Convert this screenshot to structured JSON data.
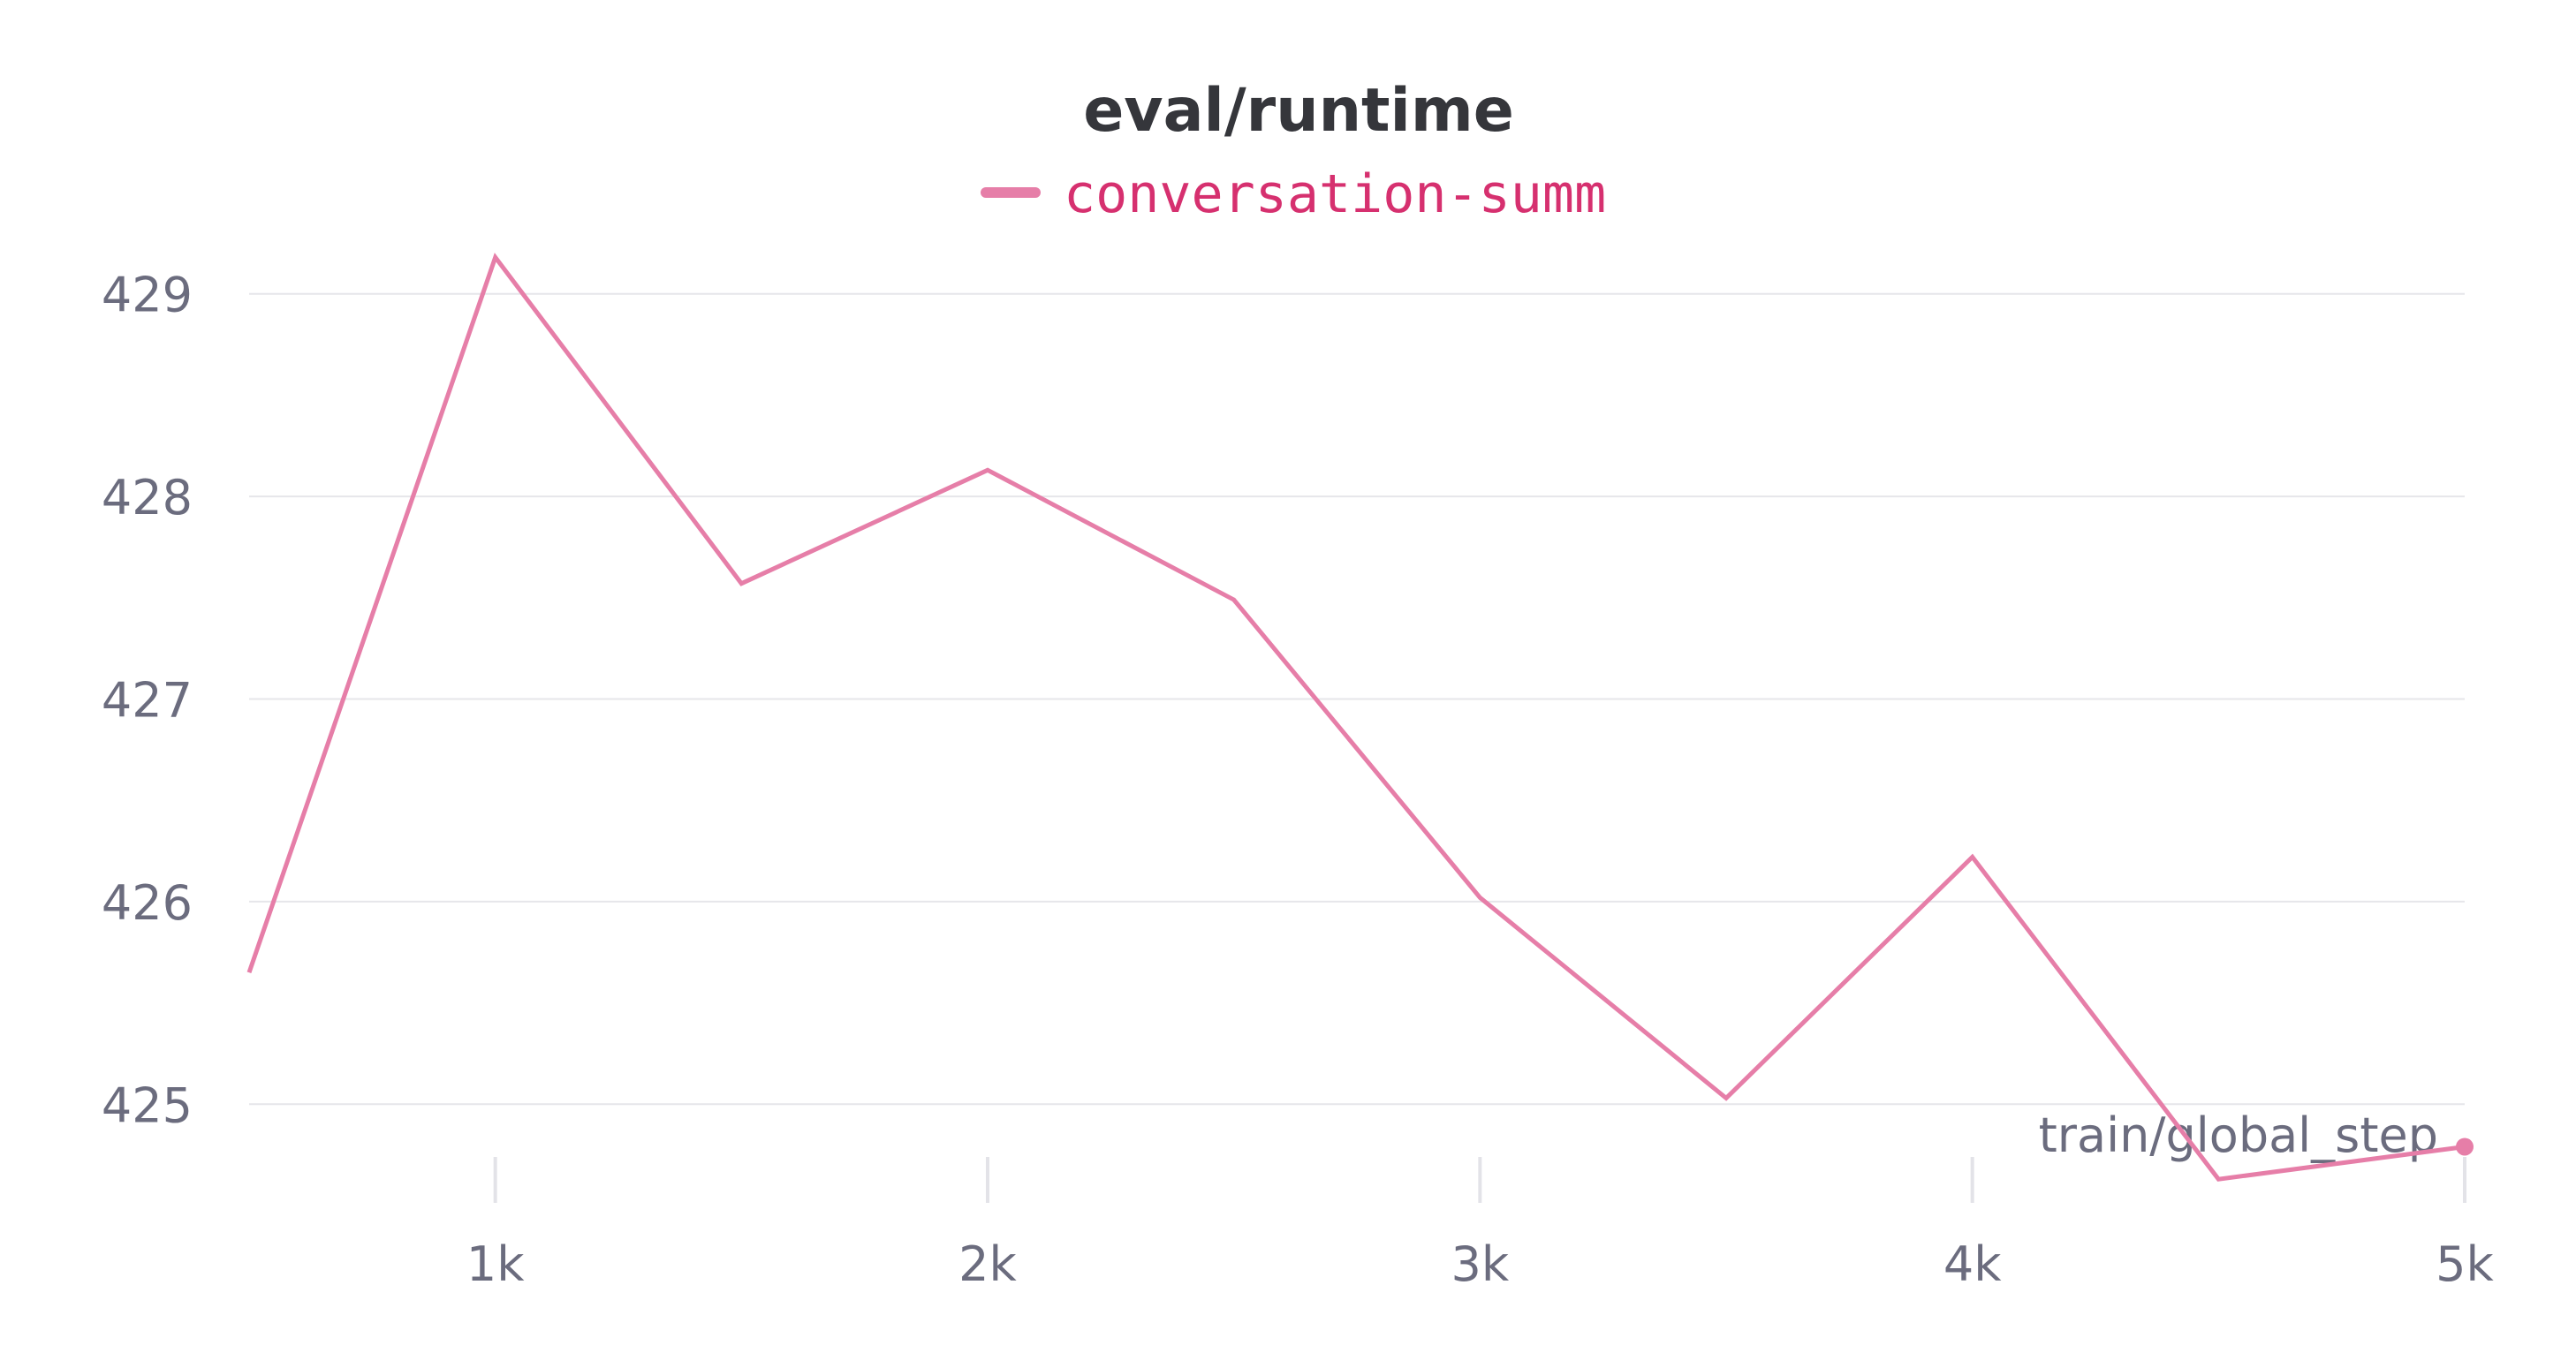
{
  "chart_data": {
    "type": "line",
    "title": "eval/runtime",
    "xlabel": "train/global_step",
    "ylabel": "",
    "xlim": [
      500,
      5000
    ],
    "ylim": [
      424.5,
      429.5
    ],
    "x_ticks": [
      1000,
      2000,
      3000,
      4000,
      5000
    ],
    "x_tick_labels": [
      "1k",
      "2k",
      "3k",
      "4k",
      "5k"
    ],
    "y_ticks": [
      425,
      426,
      427,
      428,
      429
    ],
    "y_tick_labels": [
      "425",
      "426",
      "427",
      "428",
      "429"
    ],
    "grid": true,
    "legend_position": "top-center",
    "series": [
      {
        "name": "conversation-summ",
        "color": "#e67ea8",
        "label_color": "#d6306f",
        "x": [
          500,
          1000,
          1500,
          2000,
          2500,
          3000,
          3500,
          4000,
          4500,
          5000
        ],
        "y": [
          425.65,
          429.18,
          427.57,
          428.13,
          427.49,
          426.02,
          425.03,
          426.22,
          424.63,
          424.79
        ]
      }
    ]
  }
}
